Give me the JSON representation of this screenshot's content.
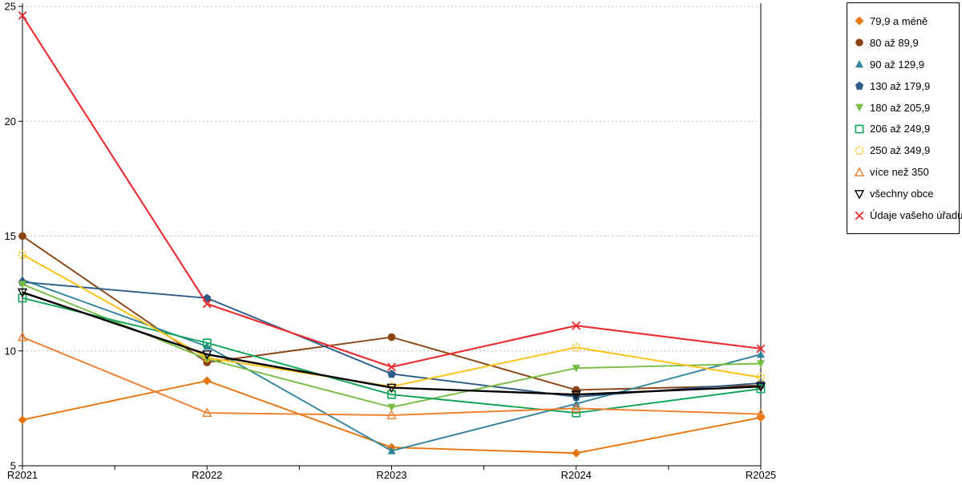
{
  "chart_data": {
    "type": "line",
    "title": "",
    "xlabel": "",
    "ylabel": "",
    "categories": [
      "R2021",
      "R2022",
      "R2023",
      "R2024",
      "R2025"
    ],
    "ylim": [
      5,
      25
    ],
    "yticks": [
      5,
      10,
      15,
      20,
      25
    ],
    "grid": "horizontal dotted at 10,15,20,25",
    "legend_position": "outside top-right, boxed",
    "series": [
      {
        "name": "79,9 a méně",
        "color": "#E8740C",
        "marker": "diamond-solid",
        "values": [
          7.0,
          8.7,
          5.8,
          5.55,
          7.1
        ]
      },
      {
        "name": "80 až 89,9",
        "color": "#8A4413",
        "marker": "circle-solid",
        "values": [
          15.0,
          9.5,
          10.6,
          8.3,
          8.5
        ]
      },
      {
        "name": "90 až 129,9",
        "color": "#31849B",
        "marker": "triangle-up-solid",
        "values": [
          13.1,
          10.2,
          5.65,
          7.7,
          9.85
        ]
      },
      {
        "name": "130 až 179,9",
        "color": "#2E5C8A",
        "marker": "pentagon-solid",
        "values": [
          13.0,
          12.3,
          9.0,
          8.0,
          8.6
        ]
      },
      {
        "name": "180 až 205,9",
        "color": "#77BC43",
        "marker": "triangle-down-solid",
        "values": [
          12.9,
          9.65,
          7.55,
          9.25,
          9.45
        ]
      },
      {
        "name": "206 až 249,9",
        "color": "#0FA457",
        "marker": "square-open",
        "values": [
          12.3,
          10.35,
          8.1,
          7.3,
          8.35
        ]
      },
      {
        "name": "250 až 349,9",
        "color": "#FFC010",
        "marker": "circle-open-dashed",
        "values": [
          14.2,
          9.7,
          8.45,
          10.15,
          8.85
        ]
      },
      {
        "name": "více než 350",
        "color": "#F07E2D",
        "marker": "triangle-up-open",
        "values": [
          10.6,
          7.3,
          7.2,
          7.5,
          7.25
        ]
      },
      {
        "name": "všechny obce",
        "color": "#000000",
        "marker": "triangle-down-open",
        "values": [
          12.55,
          9.85,
          8.4,
          8.1,
          8.45
        ]
      },
      {
        "name": "Údaje vašeho úřadu",
        "color": "#ED2A2E",
        "marker": "x-cross",
        "values": [
          24.6,
          12.05,
          9.3,
          11.1,
          10.1
        ]
      }
    ],
    "axis_color": "#000000",
    "gridline_color": "#BDBDBD",
    "background": "#FFFFFF"
  }
}
